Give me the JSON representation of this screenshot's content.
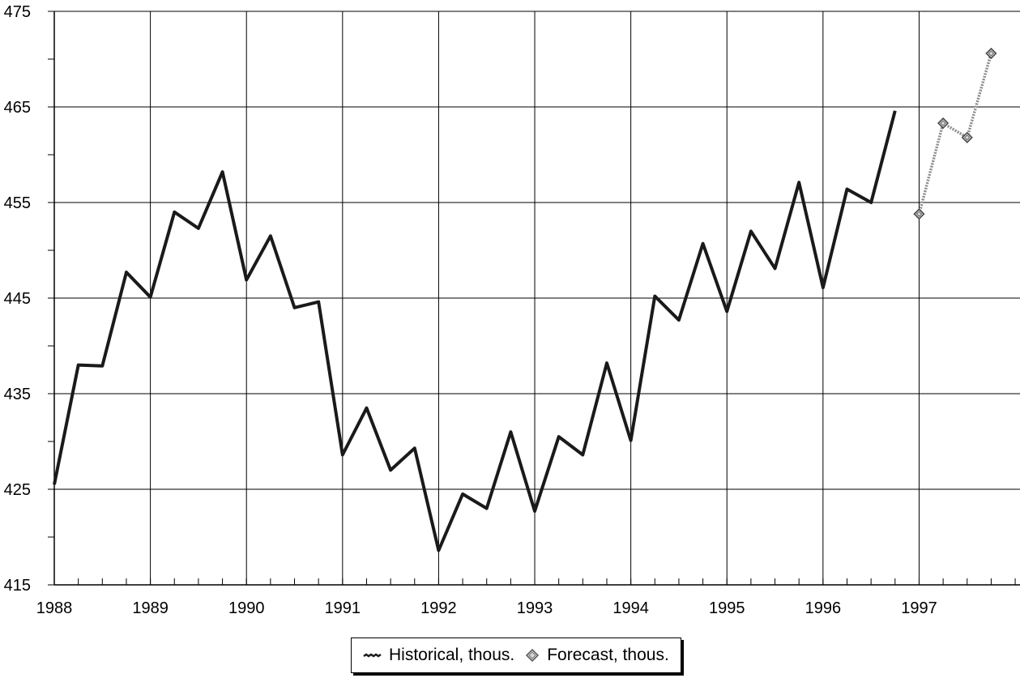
{
  "chart_data": {
    "type": "line",
    "title": "",
    "xlabel": "",
    "ylabel": "",
    "ylim": [
      415,
      475
    ],
    "y_ticks": [
      "415",
      "425",
      "435",
      "445",
      "455",
      "465",
      "475"
    ],
    "x_tick_labels": [
      "1988",
      "1989",
      "1990",
      "1991",
      "1992",
      "1993",
      "1994",
      "1995",
      "1996",
      "1997"
    ],
    "x_start_year": 1988,
    "x_end_year": 1998.05,
    "grid": true,
    "legend_position": "bottom-center",
    "series": [
      {
        "name": "Historical, thous.",
        "color": "#1a1a1a",
        "marker": "none",
        "x": [
          1988.0,
          1988.25,
          1988.5,
          1988.75,
          1989.0,
          1989.25,
          1989.5,
          1989.75,
          1990.0,
          1990.25,
          1990.5,
          1990.75,
          1991.0,
          1991.25,
          1991.5,
          1991.75,
          1992.0,
          1992.25,
          1992.5,
          1992.75,
          1993.0,
          1993.25,
          1993.5,
          1993.75,
          1994.0,
          1994.25,
          1994.5,
          1994.75,
          1995.0,
          1995.25,
          1995.5,
          1995.75,
          1996.0,
          1996.25,
          1996.5,
          1996.75
        ],
        "values": [
          425.5,
          438.0,
          437.9,
          447.7,
          445.1,
          454.0,
          452.3,
          458.2,
          446.9,
          451.5,
          444.0,
          444.6,
          428.6,
          433.5,
          427.0,
          429.3,
          418.6,
          424.5,
          423.0,
          431.0,
          422.7,
          430.5,
          428.6,
          438.2,
          430.1,
          445.2,
          442.7,
          450.7,
          443.6,
          452.0,
          448.1,
          457.1,
          446.1,
          456.4,
          455.0,
          464.6
        ]
      },
      {
        "name": "Forecast, thous.",
        "color": "#8c8c8c",
        "marker": "diamond",
        "x": [
          1997.0,
          1997.25,
          1997.5,
          1997.75
        ],
        "values": [
          453.8,
          463.3,
          461.8,
          470.6
        ]
      }
    ]
  },
  "legend": {
    "historical_label": "Historical, thous.",
    "forecast_label": "Forecast, thous."
  }
}
